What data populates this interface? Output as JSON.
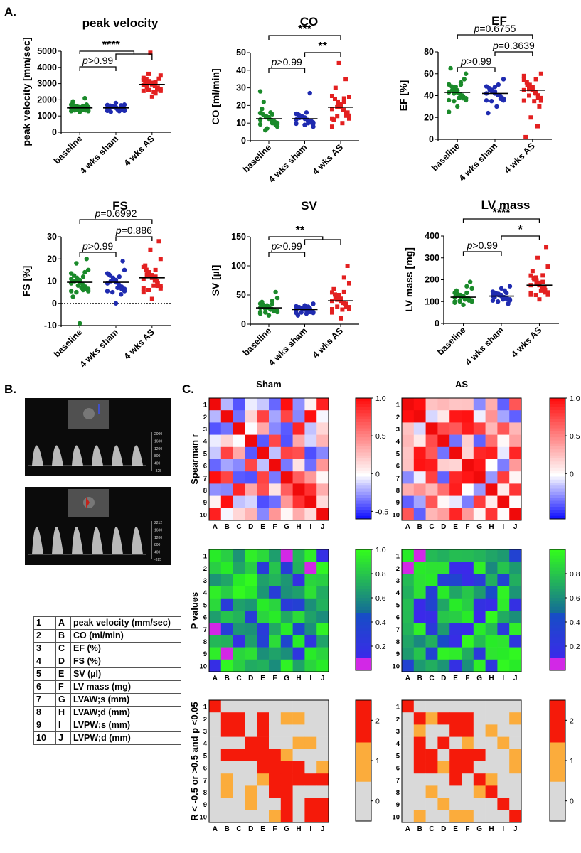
{
  "panel_labels": [
    "A.",
    "B.",
    "C."
  ],
  "colors": {
    "baseline": "#1a8a2a",
    "sham": "#1f2bb0",
    "as": "#e32020"
  },
  "chart_data": [
    {
      "type": "scatter",
      "title": "peak velocity",
      "ylabel": "peak velocity [mm/sec]",
      "categories": [
        "baseline",
        "4 wks sham",
        "4 wks AS"
      ],
      "ylim": [
        0,
        5000
      ],
      "yticks": [
        "0",
        "1000",
        "2000",
        "3000",
        "4000",
        "5000"
      ],
      "means": [
        1500,
        1500,
        2950
      ],
      "spreads": [
        250,
        220,
        500
      ],
      "series": [
        {
          "values": [
            1500,
            1400,
            1600,
            1550,
            1450,
            1350,
            1700,
            1250,
            1900,
            2100,
            1500,
            1480,
            1620,
            1380,
            1520
          ]
        },
        {
          "values": [
            1500,
            1300,
            1600,
            1700,
            1400,
            1250,
            1550,
            1800,
            1450,
            1650
          ]
        },
        {
          "values": [
            2900,
            3100,
            2600,
            3500,
            2500,
            2800,
            3300,
            2200,
            3000,
            2700,
            4900,
            3200,
            2400,
            3600
          ]
        }
      ],
      "annotations": [
        {
          "text": "p>0.99",
          "italic_p": true
        },
        {
          "text": "****"
        }
      ]
    },
    {
      "type": "scatter",
      "title": "CO",
      "ylabel": "CO [ml/min]",
      "categories": [
        "baseline",
        "4 wks sham",
        "4 wks AS"
      ],
      "ylim": [
        0,
        50
      ],
      "yticks": [
        "0",
        "10",
        "20",
        "30",
        "40",
        "50"
      ],
      "means": [
        12.5,
        12.5,
        19
      ],
      "spreads": [
        4,
        3.5,
        8
      ],
      "series": [
        {
          "values": [
            12,
            10,
            14,
            8,
            16,
            22,
            9,
            13,
            18,
            11,
            7,
            28,
            15,
            6
          ]
        },
        {
          "values": [
            12,
            10,
            14,
            8,
            16,
            13,
            11,
            9,
            15,
            27
          ]
        },
        {
          "values": [
            18,
            22,
            14,
            25,
            10,
            30,
            16,
            20,
            12,
            35,
            44,
            8,
            24,
            19
          ]
        }
      ],
      "annotations": [
        {
          "text": "p>0.99",
          "italic_p": true
        },
        {
          "text": "**"
        },
        {
          "text": "***"
        }
      ]
    },
    {
      "type": "scatter",
      "title": "EF",
      "ylabel": "EF [%]",
      "categories": [
        "baseline",
        "4 wks sham",
        "4 wks AS"
      ],
      "ylim": [
        0,
        80
      ],
      "yticks": [
        "0",
        "20",
        "40",
        "60",
        "80"
      ],
      "means": [
        43,
        42,
        45
      ],
      "spreads": [
        9,
        8,
        12
      ],
      "series": [
        {
          "values": [
            43,
            50,
            35,
            60,
            38,
            45,
            55,
            30,
            65,
            40,
            48,
            25,
            52,
            42
          ]
        },
        {
          "values": [
            42,
            50,
            35,
            55,
            30,
            45,
            38,
            48,
            24,
            40
          ]
        },
        {
          "values": [
            45,
            55,
            40,
            60,
            35,
            50,
            30,
            48,
            2,
            12,
            20,
            58,
            42,
            46
          ]
        }
      ],
      "annotations": [
        {
          "text": "p>0.99",
          "italic_p": true
        },
        {
          "text": "p=0.3639",
          "italic_p": true
        },
        {
          "text": "p=0.6755",
          "italic_p": true
        }
      ]
    },
    {
      "type": "scatter",
      "title": "FS",
      "ylabel": "FS [%]",
      "categories": [
        "baseline",
        "4 wks sham",
        "4 wks AS"
      ],
      "ylim": [
        -10,
        30
      ],
      "yticks": [
        "-10",
        "0",
        "10",
        "20",
        "30"
      ],
      "means": [
        9.5,
        9.5,
        11.5
      ],
      "spreads": [
        5,
        5,
        6
      ],
      "series": [
        {
          "values": [
            9,
            12,
            5,
            15,
            7,
            10,
            20,
            -9,
            3,
            14,
            8,
            11,
            6,
            18
          ]
        },
        {
          "values": [
            9,
            12,
            5,
            15,
            7,
            10,
            19,
            0,
            13,
            4
          ]
        },
        {
          "values": [
            11,
            15,
            6,
            20,
            8,
            13,
            28,
            2,
            17,
            10,
            24,
            5,
            12,
            14
          ]
        }
      ],
      "annotations": [
        {
          "text": "p>0.99",
          "italic_p": true
        },
        {
          "text": "p=0.886",
          "italic_p": true
        },
        {
          "text": "p=0.6992",
          "italic_p": true
        }
      ]
    },
    {
      "type": "scatter",
      "title": "SV",
      "ylabel": "SV [µl]",
      "categories": [
        "baseline",
        "4 wks sham",
        "4 wks AS"
      ],
      "ylim": [
        0,
        150
      ],
      "yticks": [
        "0",
        "50",
        "100",
        "150"
      ],
      "means": [
        28,
        25,
        40
      ],
      "spreads": [
        9,
        7,
        18
      ],
      "series": [
        {
          "values": [
            28,
            35,
            20,
            45,
            25,
            30,
            55,
            15,
            38,
            22,
            32,
            18,
            40,
            26
          ]
        },
        {
          "values": [
            25,
            30,
            20,
            35,
            18,
            28,
            22,
            32,
            15,
            27
          ]
        },
        {
          "values": [
            40,
            55,
            30,
            70,
            25,
            45,
            100,
            10,
            60,
            35,
            50,
            20,
            80,
            42
          ]
        }
      ],
      "annotations": [
        {
          "text": "p>0.99",
          "italic_p": true
        },
        {
          "text": "**"
        }
      ]
    },
    {
      "type": "scatter",
      "title": "LV mass",
      "ylabel": "LV mass [mg]",
      "categories": [
        "baseline",
        "4 wks sham",
        "4 wks AS"
      ],
      "ylim": [
        0,
        400
      ],
      "yticks": [
        "0",
        "100",
        "200",
        "300",
        "400"
      ],
      "means": [
        120,
        125,
        175
      ],
      "spreads": [
        25,
        25,
        55
      ],
      "series": [
        {
          "values": [
            120,
            140,
            100,
            160,
            110,
            130,
            190,
            85,
            150,
            115,
            125,
            95,
            170,
            105
          ]
        },
        {
          "values": [
            125,
            150,
            100,
            170,
            110,
            135,
            90,
            160,
            120,
            140
          ]
        },
        {
          "values": [
            175,
            220,
            130,
            260,
            150,
            200,
            350,
            110,
            240,
            160,
            300,
            140,
            190,
            210
          ]
        }
      ],
      "annotations": [
        {
          "text": "p>0.99",
          "italic_p": true
        },
        {
          "text": "*"
        },
        {
          "text": "****"
        }
      ]
    },
    {
      "type": "heatmap",
      "title": "Sham",
      "ylabel": "Spearman r",
      "colorscale": "blue-white-red",
      "colorbar_ticks": [
        "1.0",
        "0.5",
        "0",
        "-0.5"
      ]
    },
    {
      "type": "heatmap",
      "title": "AS",
      "colorscale": "blue-white-red",
      "colorbar_ticks": [
        "1.0",
        "0.5",
        "0"
      ]
    },
    {
      "type": "heatmap",
      "ylabel": "P values",
      "colorscale": "magenta-blue-green",
      "colorbar_ticks": [
        "1.0",
        "0.8",
        "0.6",
        "0.4",
        "0.2"
      ]
    },
    {
      "type": "heatmap",
      "colorscale": "magenta-blue-green",
      "colorbar_ticks": [
        "0.8",
        "0.6",
        "0.4",
        "0.2"
      ]
    },
    {
      "type": "heatmap",
      "ylabel": "R < -0.5 or >0.5 and p <0.05",
      "colorscale": "grey-orange-red",
      "colorbar_ticks": [
        "2",
        "1",
        "0"
      ],
      "cells": [
        [
          0,
          0,
          2
        ],
        [
          1,
          1,
          2
        ],
        [
          1,
          2,
          2
        ],
        [
          2,
          1,
          2
        ],
        [
          2,
          2,
          2
        ],
        [
          1,
          4,
          2
        ],
        [
          2,
          4,
          2
        ],
        [
          1,
          7,
          1
        ],
        [
          3,
          3,
          2
        ],
        [
          4,
          1,
          2
        ],
        [
          4,
          2,
          2
        ],
        [
          4,
          4,
          2
        ],
        [
          3,
          8,
          1
        ],
        [
          5,
          5,
          2
        ],
        [
          5,
          6,
          2
        ],
        [
          5,
          7,
          2
        ],
        [
          5,
          9,
          1
        ],
        [
          6,
          5,
          2
        ],
        [
          6,
          6,
          2
        ],
        [
          6,
          8,
          2
        ],
        [
          6,
          9,
          2
        ],
        [
          6,
          1,
          1
        ],
        [
          6,
          4,
          1
        ],
        [
          7,
          3,
          1
        ],
        [
          7,
          5,
          2
        ],
        [
          7,
          6,
          2
        ],
        [
          8,
          6,
          2
        ],
        [
          9,
          6,
          2
        ],
        [
          9,
          8,
          2
        ],
        [
          9,
          9,
          2
        ],
        [
          8,
          8,
          2
        ],
        [
          9,
          5,
          1
        ],
        [
          5,
          4,
          2
        ],
        [
          4,
          3,
          2
        ]
      ]
    },
    {
      "type": "heatmap",
      "colorscale": "grey-orange-red",
      "colorbar_ticks": [
        "2",
        "1",
        "0"
      ],
      "cells": [
        [
          0,
          0,
          2
        ],
        [
          1,
          1,
          2
        ],
        [
          1,
          3,
          2
        ],
        [
          1,
          4,
          1
        ],
        [
          1,
          9,
          1
        ],
        [
          2,
          1,
          1
        ],
        [
          2,
          4,
          2
        ],
        [
          2,
          5,
          2
        ],
        [
          2,
          7,
          2
        ],
        [
          3,
          3,
          2
        ],
        [
          3,
          8,
          1
        ],
        [
          4,
          1,
          2
        ],
        [
          4,
          4,
          2
        ],
        [
          4,
          5,
          2
        ],
        [
          4,
          6,
          2
        ],
        [
          4,
          9,
          1
        ],
        [
          5,
          1,
          2
        ],
        [
          5,
          3,
          1
        ],
        [
          5,
          4,
          2
        ],
        [
          5,
          5,
          2
        ],
        [
          5,
          9,
          1
        ],
        [
          6,
          6,
          2
        ],
        [
          6,
          7,
          1
        ],
        [
          7,
          2,
          1
        ],
        [
          7,
          7,
          2
        ],
        [
          8,
          8,
          2
        ],
        [
          9,
          1,
          1
        ],
        [
          9,
          4,
          1
        ],
        [
          9,
          5,
          1
        ],
        [
          9,
          9,
          2
        ]
      ]
    }
  ],
  "heatmap_axis": {
    "rows": [
      "1",
      "2",
      "3",
      "4",
      "5",
      "6",
      "7",
      "8",
      "9",
      "10"
    ],
    "cols": [
      "A",
      "B",
      "C",
      "D",
      "E",
      "F",
      "G",
      "H",
      "I",
      "J"
    ]
  },
  "legend_table": [
    {
      "num": "1",
      "letter": "A",
      "desc": "peak velocity (mm/sec)"
    },
    {
      "num": "2",
      "letter": "B",
      "desc": "CO (ml/min)"
    },
    {
      "num": "3",
      "letter": "C",
      "desc": "EF (%)"
    },
    {
      "num": "4",
      "letter": "D",
      "desc": "FS (%)"
    },
    {
      "num": "5",
      "letter": "E",
      "desc": "SV (µl)"
    },
    {
      "num": "6",
      "letter": "F",
      "desc": "LV mass (mg)"
    },
    {
      "num": "7",
      "letter": "G",
      "desc": "LVAW;s (mm)"
    },
    {
      "num": "8",
      "letter": "H",
      "desc": "LVAW;d (mm)"
    },
    {
      "num": "9",
      "letter": "I",
      "desc": "LVPW;s (mm)"
    },
    {
      "num": "10",
      "letter": "J",
      "desc": "LVPW;d (mm)"
    }
  ],
  "echo_images": [
    {
      "scale_labels": [
        "2000",
        "1600",
        "1200",
        "800",
        "400",
        "-325"
      ]
    },
    {
      "scale_labels": [
        "2212",
        "1600",
        "1200",
        "800",
        "400",
        "-325"
      ]
    }
  ]
}
